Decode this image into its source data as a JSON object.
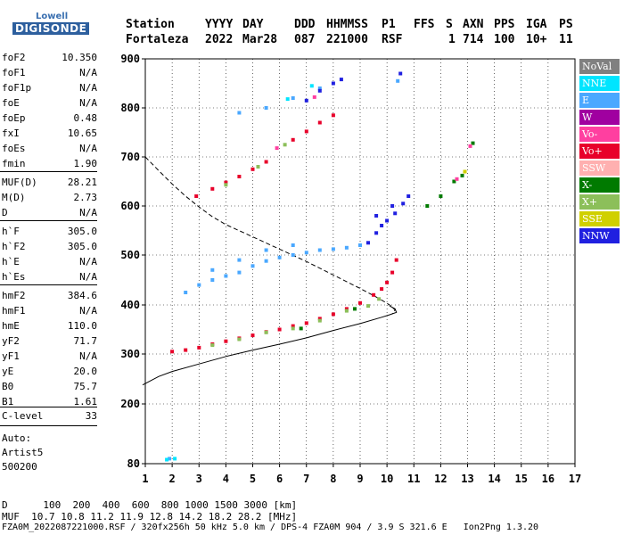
{
  "logo": {
    "line1": "Lowell",
    "line2": "DIGISONDE"
  },
  "header": {
    "labels": [
      "Station",
      "YYYY",
      "DAY",
      "DDD",
      "HHMMSS",
      "P1",
      "FFS",
      "S",
      "AXN",
      "PPS",
      "IGA",
      "PS"
    ],
    "values": [
      "Fortaleza",
      "2022",
      "Mar28",
      "087",
      "221000",
      "RSF",
      "1",
      "714",
      "100",
      "10+",
      "11"
    ]
  },
  "params": {
    "group1": [
      {
        "name": "foF2",
        "value": "10.350"
      },
      {
        "name": "foF1",
        "value": "N/A"
      },
      {
        "name": "foF1p",
        "value": "N/A"
      },
      {
        "name": "foE",
        "value": "N/A"
      },
      {
        "name": "foEp",
        "value": "0.48"
      },
      {
        "name": "fxI",
        "value": "10.65"
      },
      {
        "name": "foEs",
        "value": "N/A"
      },
      {
        "name": "fmin",
        "value": "1.90"
      }
    ],
    "group2": [
      {
        "name": "MUF(D)",
        "value": "28.21"
      },
      {
        "name": "M(D)",
        "value": "2.73"
      },
      {
        "name": "D",
        "value": "N/A"
      }
    ],
    "group3": [
      {
        "name": "h`F",
        "value": "305.0"
      },
      {
        "name": "h`F2",
        "value": "305.0"
      },
      {
        "name": "h`E",
        "value": "N/A"
      },
      {
        "name": "h`Es",
        "value": "N/A"
      }
    ],
    "group4": [
      {
        "name": "hmF2",
        "value": "384.6"
      },
      {
        "name": "hmF1",
        "value": "N/A"
      },
      {
        "name": "hmE",
        "value": "110.0"
      },
      {
        "name": "yF2",
        "value": "71.7"
      },
      {
        "name": "yF1",
        "value": "N/A"
      },
      {
        "name": "yE",
        "value": "20.0"
      },
      {
        "name": "B0",
        "value": "75.7"
      },
      {
        "name": "B1",
        "value": "1.61"
      }
    ],
    "group5": [
      {
        "name": "C-level",
        "value": "33"
      }
    ]
  },
  "auto": {
    "line1": "Auto:",
    "line2": "Artist5",
    "line3": "500200"
  },
  "legend": [
    {
      "label": "NoVal",
      "color": "#808080"
    },
    {
      "label": "NNE",
      "color": "#00e5ff"
    },
    {
      "label": "E",
      "color": "#4aa8ff"
    },
    {
      "label": "W",
      "color": "#a000a0"
    },
    {
      "label": "Vo-",
      "color": "#ff3fa0"
    },
    {
      "label": "Vo+",
      "color": "#e8002a"
    },
    {
      "label": "SSW",
      "color": "#ffb0b0"
    },
    {
      "label": "X-",
      "color": "#007a00"
    },
    {
      "label": "X+",
      "color": "#8cbf5a"
    },
    {
      "label": "SSE",
      "color": "#d0d000"
    },
    {
      "label": "NNW",
      "color": "#2020e0"
    }
  ],
  "footer": {
    "line1": "D      100  200  400  600  800 1000 1500 3000 [km]",
    "line2": "MUF  10.7 10.8 11.2 11.9 12.8 14.2 18.2 28.2 [MHz]",
    "line3": "FZA0M_2022087221000.RSF / 320fx256h 50 kHz 5.0 km / DPS-4 FZA0M 904 / 3.9 S 321.6 E   Ion2Png 1.3.20"
  },
  "chart_data": {
    "type": "scatter",
    "xlim": [
      1,
      17
    ],
    "ylim": [
      80,
      900
    ],
    "x_ticks": [
      "1",
      "2",
      "3",
      "4",
      "5",
      "6",
      "7",
      "8",
      "9",
      "10",
      "11",
      "12",
      "13",
      "14",
      "15",
      "16",
      "17"
    ],
    "y_ticks": [
      "80",
      "200",
      "300",
      "400",
      "500",
      "600",
      "700",
      "800",
      "900"
    ],
    "series": [
      {
        "color_key": "Vo+",
        "color": "#e8002a",
        "values": [
          [
            2.0,
            305
          ],
          [
            2.5,
            308
          ],
          [
            3.0,
            313
          ],
          [
            3.5,
            320
          ],
          [
            4.0,
            326
          ],
          [
            4.5,
            332
          ],
          [
            5.0,
            338
          ],
          [
            5.5,
            345
          ],
          [
            6.0,
            350
          ],
          [
            6.5,
            357
          ],
          [
            7.0,
            363
          ],
          [
            7.5,
            372
          ],
          [
            8.0,
            381
          ],
          [
            8.5,
            392
          ],
          [
            9.0,
            404
          ],
          [
            9.5,
            420
          ],
          [
            9.8,
            432
          ],
          [
            10.0,
            445
          ],
          [
            10.2,
            465
          ],
          [
            10.35,
            490
          ],
          [
            2.9,
            620
          ],
          [
            3.5,
            635
          ],
          [
            4.0,
            648
          ],
          [
            4.5,
            660
          ],
          [
            5.0,
            675
          ],
          [
            5.5,
            690
          ],
          [
            6.5,
            735
          ],
          [
            7.0,
            752
          ],
          [
            7.5,
            770
          ],
          [
            8.0,
            785
          ]
        ]
      },
      {
        "color_key": "X+",
        "color": "#8cbf5a",
        "values": [
          [
            3.5,
            318
          ],
          [
            4.5,
            330
          ],
          [
            5.5,
            344
          ],
          [
            6.5,
            352
          ],
          [
            7.5,
            368
          ],
          [
            8.5,
            388
          ],
          [
            9.3,
            398
          ],
          [
            9.7,
            412
          ],
          [
            4.0,
            643
          ],
          [
            5.2,
            680
          ],
          [
            6.2,
            725
          ]
        ]
      },
      {
        "color_key": "X-",
        "color": "#007a00",
        "values": [
          [
            6.8,
            352
          ],
          [
            8.8,
            392
          ],
          [
            11.5,
            600
          ],
          [
            12.0,
            620
          ],
          [
            12.5,
            650
          ],
          [
            12.8,
            662
          ],
          [
            13.2,
            728
          ]
        ]
      },
      {
        "color_key": "E",
        "color": "#4aa8ff",
        "values": [
          [
            2.5,
            425
          ],
          [
            3.0,
            440
          ],
          [
            3.5,
            450
          ],
          [
            4.0,
            458
          ],
          [
            4.5,
            465
          ],
          [
            5.0,
            478
          ],
          [
            5.5,
            488
          ],
          [
            6.0,
            495
          ],
          [
            6.5,
            500
          ],
          [
            7.0,
            505
          ],
          [
            7.5,
            510
          ],
          [
            8.0,
            512
          ],
          [
            8.5,
            515
          ],
          [
            9.0,
            520
          ],
          [
            3.5,
            470
          ],
          [
            4.5,
            490
          ],
          [
            5.5,
            510
          ],
          [
            6.5,
            520
          ],
          [
            1.9,
            90
          ],
          [
            4.5,
            790
          ],
          [
            5.5,
            800
          ],
          [
            6.5,
            820
          ],
          [
            7.5,
            840
          ],
          [
            10.4,
            855
          ]
        ]
      },
      {
        "color_key": "NNW",
        "color": "#2020e0",
        "values": [
          [
            9.3,
            525
          ],
          [
            9.6,
            545
          ],
          [
            9.8,
            560
          ],
          [
            10.0,
            570
          ],
          [
            10.3,
            585
          ],
          [
            10.6,
            605
          ],
          [
            10.8,
            620
          ],
          [
            9.6,
            580
          ],
          [
            10.2,
            600
          ],
          [
            7.0,
            815
          ],
          [
            7.5,
            835
          ],
          [
            8.0,
            850
          ],
          [
            8.3,
            858
          ],
          [
            10.5,
            870
          ]
        ]
      },
      {
        "color_key": "Vo-",
        "color": "#ff3fa0",
        "values": [
          [
            12.6,
            655
          ],
          [
            13.1,
            722
          ],
          [
            7.3,
            822
          ],
          [
            5.9,
            718
          ]
        ]
      },
      {
        "color_key": "NNE",
        "color": "#00e5ff",
        "values": [
          [
            1.8,
            88
          ],
          [
            2.1,
            90
          ],
          [
            6.3,
            818
          ],
          [
            7.2,
            845
          ]
        ]
      },
      {
        "color_key": "SSE",
        "color": "#d0d000",
        "values": [
          [
            12.9,
            670
          ]
        ]
      }
    ],
    "profile_solid": [
      [
        0.9,
        238
      ],
      [
        1.5,
        255
      ],
      [
        2.0,
        265
      ],
      [
        3.0,
        280
      ],
      [
        4.0,
        295
      ],
      [
        5.0,
        308
      ],
      [
        6.0,
        320
      ],
      [
        7.0,
        333
      ],
      [
        8.0,
        348
      ],
      [
        9.0,
        362
      ],
      [
        9.8,
        375
      ],
      [
        10.1,
        380
      ],
      [
        10.35,
        385
      ],
      [
        10.3,
        392
      ],
      [
        10.1,
        398
      ]
    ],
    "profile_dashed": [
      [
        1.0,
        700
      ],
      [
        1.5,
        672
      ],
      [
        2.0,
        645
      ],
      [
        2.5,
        620
      ],
      [
        3.0,
        598
      ],
      [
        3.5,
        578
      ],
      [
        4.0,
        562
      ],
      [
        5.0,
        537
      ],
      [
        6.0,
        512
      ],
      [
        7.0,
        487
      ],
      [
        8.0,
        460
      ],
      [
        9.0,
        433
      ],
      [
        9.7,
        413
      ],
      [
        10.1,
        400
      ],
      [
        10.3,
        390
      ],
      [
        10.2,
        382
      ]
    ]
  }
}
